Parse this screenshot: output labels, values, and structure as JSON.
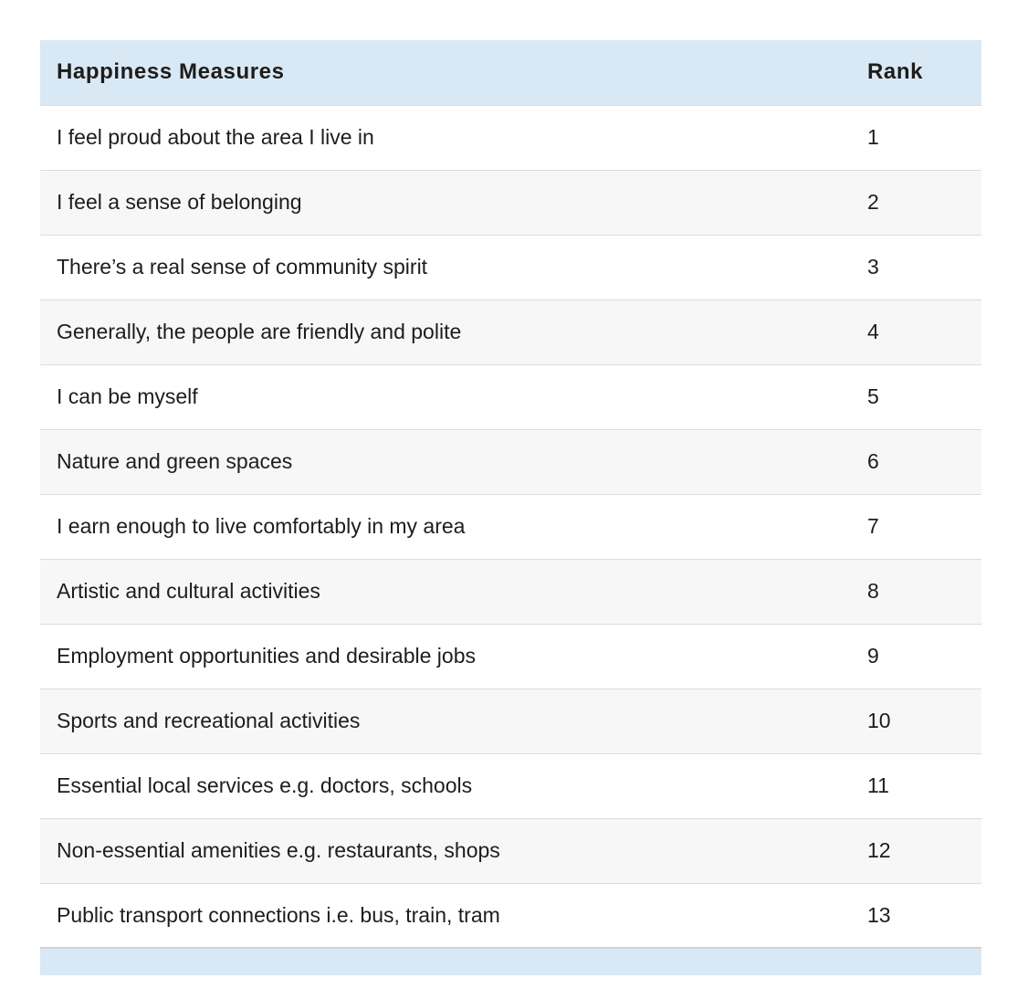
{
  "table": {
    "columns": [
      {
        "label": "Happiness Measures"
      },
      {
        "label": "Rank"
      }
    ],
    "rows": [
      {
        "measure": "I feel proud about the area I live in",
        "rank": "1"
      },
      {
        "measure": "I feel a sense of belonging",
        "rank": "2"
      },
      {
        "measure": "There’s a real sense of community spirit",
        "rank": "3"
      },
      {
        "measure": "Generally, the people are friendly and polite",
        "rank": "4"
      },
      {
        "measure": "I can be myself",
        "rank": "5"
      },
      {
        "measure": "Nature and green spaces",
        "rank": "6"
      },
      {
        "measure": "I earn enough to live comfortably in my area",
        "rank": "7"
      },
      {
        "measure": "Artistic and cultural activities",
        "rank": "8"
      },
      {
        "measure": "Employment opportunities and desirable jobs",
        "rank": "9"
      },
      {
        "measure": "Sports and recreational activities",
        "rank": "10"
      },
      {
        "measure": "Essential local services e.g. doctors, schools",
        "rank": "11"
      },
      {
        "measure": "Non-essential amenities e.g. restaurants, shops",
        "rank": "12"
      },
      {
        "measure": "Public transport connections i.e. bus, train, tram",
        "rank": "13"
      }
    ]
  },
  "colors": {
    "header_bg": "#d9e8f5",
    "footer_bg": "#d9e8f5",
    "row_alt_bg": "#f7f7f7",
    "border": "#dcdcdc",
    "text": "#1d1d1b"
  }
}
